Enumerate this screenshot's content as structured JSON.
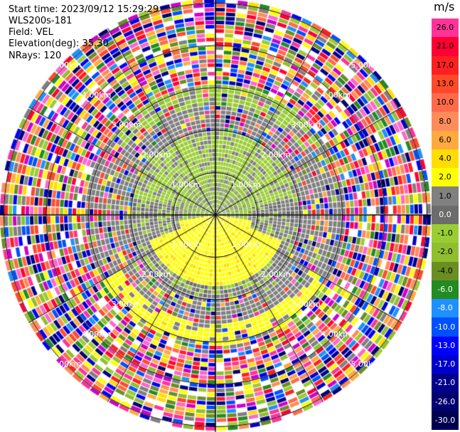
{
  "header": {
    "start_time": "Start time: 2023/09/12 15:29:29",
    "instrument": "WLS200s-181",
    "field": "Field: VEL",
    "elevation": "Elevation(deg): 35.30",
    "nrays": "NRays: 120"
  },
  "rings": {
    "labels": [
      "1.00km",
      "2.00km",
      "3.00km",
      "4.00km",
      "5.00km"
    ]
  },
  "colorbar": {
    "unit": "m/s",
    "labels": [
      "26.0",
      "21.0",
      "17.0",
      "13.0",
      "10.0",
      "8.0",
      "6.0",
      "4.0",
      "2.0",
      "1.0",
      "0.0",
      "-1.0",
      "-2.0",
      "-4.0",
      "-6.0",
      "-8.0",
      "-10.0",
      "-13.0",
      "-17.0",
      "-21.0",
      "-26.0",
      "-30.0"
    ],
    "colors": [
      "#ff3399",
      "#ff0033",
      "#ff2020",
      "#ff4a2a",
      "#ff6a4a",
      "#ff8c5a",
      "#ffaa40",
      "#ffdd00",
      "#ffff00",
      "#808080",
      "#6c6c6c",
      "#9acd32",
      "#8fbf2f",
      "#6b8e23",
      "#228b22",
      "#1e90ff",
      "#0050ff",
      "#0000ff",
      "#0000cc",
      "#00008b",
      "#000070",
      "#000050"
    ]
  }
}
